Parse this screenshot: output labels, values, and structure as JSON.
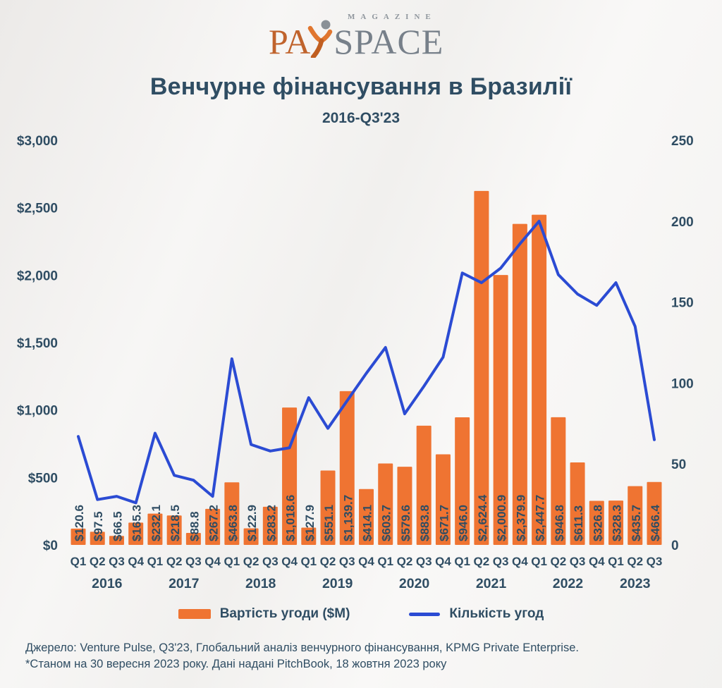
{
  "logo": {
    "magazine": "MAGAZINE",
    "pa": "PA",
    "space": "SPACE",
    "orange": "#c0632c",
    "gray": "#77808a",
    "head_gray": "#8a9096"
  },
  "header": {
    "title": "Венчурне фінансування в Бразилії",
    "subtitle": "2016-Q3'23"
  },
  "chart_data": {
    "type": "combo",
    "title": "Венчурне фінансування в Бразилії",
    "subtitle": "2016-Q3'23",
    "grid": false,
    "legend_position": "bottom",
    "categories": [
      "Q1",
      "Q2",
      "Q3",
      "Q4",
      "Q1",
      "Q2",
      "Q3",
      "Q4",
      "Q1",
      "Q2",
      "Q3",
      "Q4",
      "Q1",
      "Q2",
      "Q3",
      "Q4",
      "Q1",
      "Q2",
      "Q3",
      "Q4",
      "Q1",
      "Q2",
      "Q3",
      "Q4",
      "Q1",
      "Q2",
      "Q3",
      "Q4",
      "Q1",
      "Q2",
      "Q3"
    ],
    "year_groups": [
      {
        "label": "2016",
        "count": 4
      },
      {
        "label": "2017",
        "count": 4
      },
      {
        "label": "2018",
        "count": 4
      },
      {
        "label": "2019",
        "count": 4
      },
      {
        "label": "2020",
        "count": 4
      },
      {
        "label": "2021",
        "count": 4
      },
      {
        "label": "2022",
        "count": 4
      },
      {
        "label": "2023",
        "count": 3
      }
    ],
    "series": [
      {
        "name": "Вартість угоди ($M)",
        "type": "bar",
        "axis": "left",
        "color": "#ef7432",
        "values": [
          120.6,
          97.5,
          66.5,
          165.3,
          232.1,
          218.5,
          88.8,
          267.2,
          463.8,
          122.9,
          283.2,
          1018.6,
          127.9,
          551.1,
          1139.7,
          414.1,
          603.7,
          579.6,
          883.8,
          671.7,
          946.0,
          2624.4,
          2000.9,
          2379.9,
          2447.7,
          946.8,
          611.3,
          326.8,
          328.3,
          435.7,
          466.4
        ],
        "labels": [
          "$120.6",
          "$97.5",
          "$66.5",
          "$165.3",
          "$232.1",
          "$218.5",
          "$88.8",
          "$267.2",
          "$463.8",
          "$122.9",
          "$283.2",
          "$1,018.6",
          "$127.9",
          "$551.1",
          "$1,139.7",
          "$414.1",
          "$603.7",
          "$579.6",
          "$883.8",
          "$671.7",
          "$946.0",
          "$2,624.4",
          "$2,000.9",
          "$2,379.9",
          "$2,447.7",
          "$946.8",
          "$611.3",
          "$326.8",
          "$328.3",
          "$435.7",
          "$466.4"
        ]
      },
      {
        "name": "Кількість угод",
        "type": "line",
        "axis": "right",
        "color": "#2b4bd3",
        "values": [
          67,
          28,
          30,
          26,
          69,
          43,
          40,
          30,
          115,
          62,
          58,
          60,
          91,
          72,
          89,
          106,
          122,
          81,
          98,
          116,
          168,
          162,
          171,
          186,
          200,
          167,
          155,
          148,
          162,
          135,
          65
        ]
      }
    ],
    "left_axis": {
      "min": 0,
      "max": 3000,
      "ticks": [
        "$0",
        "$500",
        "$1,000",
        "$1,500",
        "$2,000",
        "$2,500",
        "$3,000"
      ]
    },
    "right_axis": {
      "min": 0,
      "max": 250,
      "ticks": [
        "0",
        "50",
        "100",
        "150",
        "200",
        "250"
      ]
    }
  },
  "legend": {
    "bar_label": "Вартість угоди ($M)",
    "line_label": "Кількість угод"
  },
  "source": {
    "line1": "Джерело: Venture Pulse, Q3'23, Глобальний аналіз венчурного фінансування, KPMG Private Enterprise.",
    "line2": "*Станом на 30 вересня 2023 року. Дані надані PitchBook, 18 жовтня 2023 року"
  },
  "colors": {
    "text": "#2f4d63",
    "bar": "#ef7432",
    "line": "#2b4bd3"
  }
}
